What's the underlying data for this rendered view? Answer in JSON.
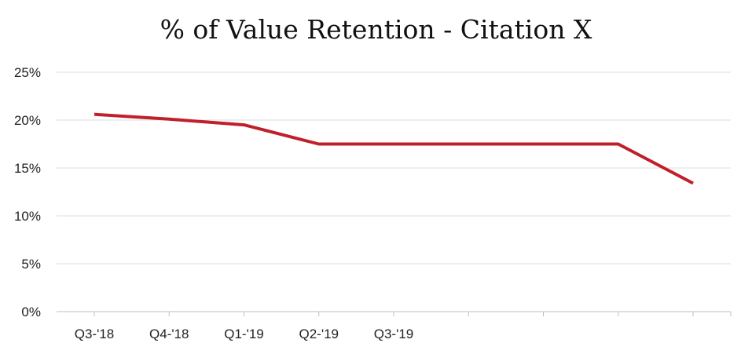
{
  "chart_data": {
    "type": "line",
    "title": "% of Value Retention - Citation X",
    "xlabel": "",
    "ylabel": "",
    "categories": [
      "Q3-'18",
      "Q4-'18",
      "Q1-'19",
      "Q2-'19",
      "Q3-'19",
      "",
      "",
      "",
      ""
    ],
    "series": [
      {
        "values": [
          20.6,
          20.1,
          19.5,
          17.5,
          17.5,
          17.5,
          17.5,
          17.5,
          13.4
        ]
      }
    ],
    "ylim": [
      0,
      25
    ],
    "yticks": [
      "0%",
      "5%",
      "10%",
      "15%",
      "20%",
      "25%"
    ],
    "ytick_values": [
      0,
      5,
      10,
      15,
      20,
      25
    ],
    "grid": true,
    "legend": "none",
    "colors": {
      "line": "#c0202c",
      "grid": "#dcdcdc",
      "axis": "#bfbfbf"
    }
  }
}
